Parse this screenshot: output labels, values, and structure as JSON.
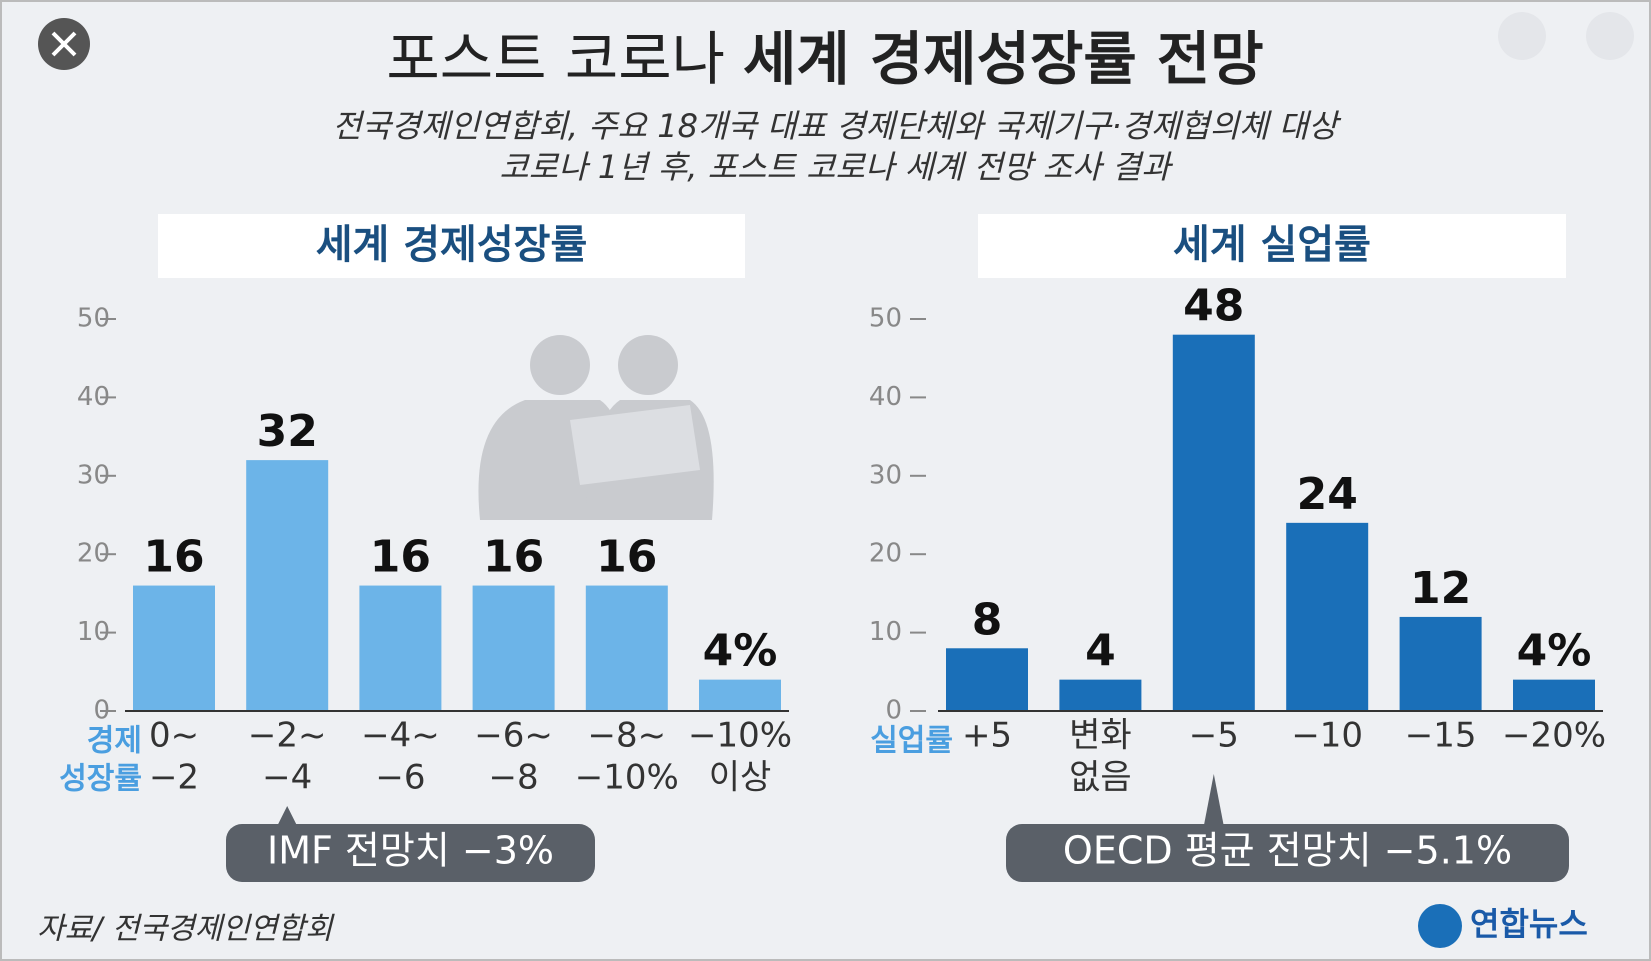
{
  "header": {
    "title": [
      "포스트 코로나",
      "세계 경제성장률 전망"
    ],
    "subtitle": [
      "전국경제인연합회, 주요 18개국 대표 경제단체와 국제기구·경제협의체 대상",
      "코로나 1년 후, 포스트 코로나 세계 전망 조사 결과"
    ]
  },
  "chart_data": [
    {
      "type": "bar",
      "title": "세계 경제성장률",
      "x_label": [
        "경제",
        "성장률"
      ],
      "categories": [
        [
          "0~",
          "−2"
        ],
        [
          "−2~",
          "−4"
        ],
        [
          "−4~",
          "−6"
        ],
        [
          "−6~",
          "−8"
        ],
        [
          "−8~",
          "−10%"
        ],
        [
          "−10%",
          "이상"
        ]
      ],
      "values": [
        16,
        32,
        16,
        16,
        16,
        4
      ],
      "value_labels": [
        "16",
        "32",
        "16",
        "16",
        "16",
        "4%"
      ],
      "color": "#6cb4e8",
      "ylim": [
        0,
        50
      ],
      "yticks": [
        0,
        10,
        20,
        30,
        40,
        50
      ],
      "annotation": "IMF 전망치 −3%"
    },
    {
      "type": "bar",
      "title": "세계 실업률",
      "x_label": [
        "실업률"
      ],
      "categories": [
        [
          "+5"
        ],
        [
          "변화",
          "없음"
        ],
        [
          "−5"
        ],
        [
          "−10"
        ],
        [
          "−15"
        ],
        [
          "−20%"
        ]
      ],
      "values": [
        8,
        4,
        48,
        24,
        12,
        4
      ],
      "value_labels": [
        "8",
        "4",
        "48",
        "24",
        "12",
        "4%"
      ],
      "color": "#1a6fb8",
      "ylim": [
        0,
        50
      ],
      "yticks": [
        0,
        10,
        20,
        30,
        40,
        50
      ],
      "annotation": "OECD 평균 전망치 −5.1%"
    }
  ],
  "footer": {
    "source": "자료/ 전국경제인연합회",
    "logo": "연합뉴스"
  }
}
